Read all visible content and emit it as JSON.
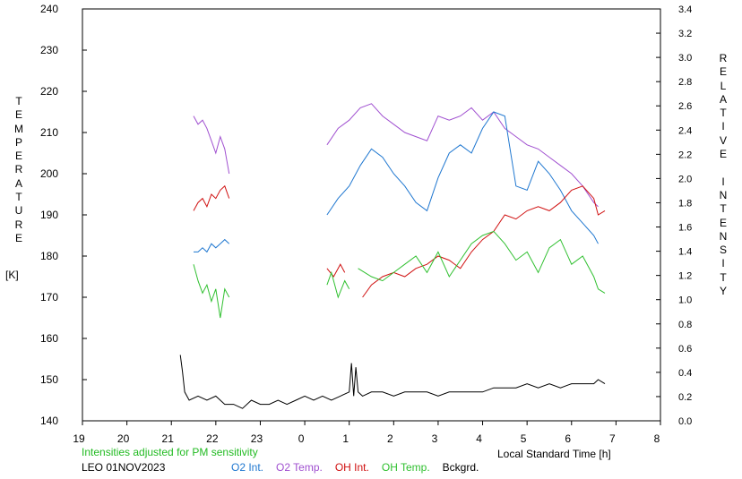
{
  "chart_data": {
    "type": "line",
    "station": "LEO 01NOV2023",
    "note": "Intensities adjusted for PM sensitivity",
    "xlabel": "Local Standard Time [h]",
    "xticks": [
      "19",
      "20",
      "21",
      "22",
      "23",
      "0",
      "1",
      "2",
      "3",
      "4",
      "5",
      "6",
      "7",
      "8"
    ],
    "xlim": [
      19,
      32
    ],
    "ylabel_left": "TEMPERATURE",
    "ylabel_left_unit": "[K]",
    "ylim_left": [
      140,
      240
    ],
    "yticks_left": [
      "140",
      "150",
      "160",
      "170",
      "180",
      "190",
      "200",
      "210",
      "220",
      "230",
      "240"
    ],
    "ylabel_right": "RELATIVE INTENSITY",
    "ylim_right": [
      0,
      3.4
    ],
    "yticks_right": [
      "0.0",
      "0.2",
      "0.4",
      "0.6",
      "0.8",
      "1.0",
      "1.2",
      "1.4",
      "1.6",
      "1.8",
      "2.0",
      "2.2",
      "2.4",
      "2.6",
      "2.8",
      "3.0",
      "3.2",
      "3.4"
    ],
    "legend": [
      {
        "name": "O2 Int.",
        "color": "#1f77d0"
      },
      {
        "name": "O2 Temp.",
        "color": "#a050d0"
      },
      {
        "name": "OH Int.",
        "color": "#d01010"
      },
      {
        "name": "OH Temp.",
        "color": "#30c030"
      },
      {
        "name": "Bckgrd.",
        "color": "#000000"
      }
    ],
    "series": [
      {
        "name": "O2 Temp.",
        "axis": "left",
        "color": "#a050d0",
        "segments": [
          {
            "x": [
              21.5,
              21.6,
              21.7,
              21.8,
              21.9,
              22.0,
              22.1,
              22.2,
              22.3
            ],
            "y": [
              214,
              212,
              213,
              211,
              208,
              205,
              209,
              206,
              200
            ]
          },
          {
            "x": [
              24.5,
              24.75,
              25.0,
              25.25,
              25.5,
              25.75,
              26.0,
              26.25,
              26.5,
              26.75,
              27.0,
              27.25,
              27.5,
              27.75,
              28.0,
              28.25,
              28.5,
              28.75,
              29.0,
              29.25,
              29.5,
              29.75,
              30.0,
              30.25,
              30.5,
              30.6
            ],
            "y": [
              207,
              211,
              213,
              216,
              217,
              214,
              212,
              210,
              209,
              208,
              214,
              213,
              214,
              216,
              213,
              215,
              211,
              209,
              207,
              206,
              204,
              202,
              200,
              197,
              193,
              192
            ]
          }
        ]
      },
      {
        "name": "O2 Int.",
        "axis": "left",
        "color": "#1f77d0",
        "segments": [
          {
            "x": [
              21.5,
              21.6,
              21.7,
              21.8,
              21.9,
              22.0,
              22.1,
              22.2,
              22.3
            ],
            "y": [
              181,
              181,
              182,
              181,
              183,
              182,
              183,
              184,
              183
            ]
          },
          {
            "x": [
              24.5,
              24.75,
              25.0,
              25.25,
              25.5,
              25.75,
              26.0,
              26.25,
              26.5,
              26.75,
              27.0,
              27.25,
              27.5,
              27.75,
              28.0,
              28.25,
              28.5,
              28.75,
              29.0,
              29.25,
              29.5,
              29.75,
              30.0,
              30.25,
              30.5,
              30.6
            ],
            "y": [
              190,
              194,
              197,
              202,
              206,
              204,
              200,
              197,
              193,
              191,
              199,
              205,
              207,
              205,
              211,
              215,
              214,
              197,
              196,
              203,
              200,
              196,
              191,
              188,
              185,
              183
            ]
          }
        ]
      },
      {
        "name": "OH Int.",
        "axis": "left",
        "color": "#d01010",
        "segments": [
          {
            "x": [
              21.5,
              21.6,
              21.7,
              21.8,
              21.9,
              22.0,
              22.1,
              22.2,
              22.3
            ],
            "y": [
              191,
              193,
              194,
              192,
              195,
              194,
              196,
              197,
              194
            ]
          },
          {
            "x": [
              24.5,
              24.65,
              24.8,
              24.9
            ],
            "y": [
              177,
              175,
              178,
              176
            ]
          },
          {
            "x": [
              25.3,
              25.5,
              25.75,
              26.0,
              26.25,
              26.5,
              26.75,
              27.0,
              27.25,
              27.5,
              27.75,
              28.0,
              28.25,
              28.5,
              28.75,
              29.0,
              29.25,
              29.5,
              29.75,
              30.0,
              30.25,
              30.5,
              30.6,
              30.75
            ],
            "y": [
              170,
              173,
              175,
              176,
              175,
              177,
              178,
              180,
              179,
              177,
              181,
              184,
              186,
              190,
              189,
              191,
              192,
              191,
              193,
              196,
              197,
              194,
              190,
              191
            ]
          }
        ]
      },
      {
        "name": "OH Temp.",
        "axis": "left",
        "color": "#30c030",
        "segments": [
          {
            "x": [
              21.5,
              21.6,
              21.7,
              21.8,
              21.9,
              22.0,
              22.1,
              22.2,
              22.3
            ],
            "y": [
              178,
              174,
              171,
              173,
              169,
              172,
              165,
              172,
              170
            ]
          },
          {
            "x": [
              24.5,
              24.6,
              24.75,
              24.9,
              25.0
            ],
            "y": [
              173,
              176,
              170,
              174,
              172
            ]
          },
          {
            "x": [
              25.2,
              25.5,
              25.75,
              26.0,
              26.25,
              26.5,
              26.75,
              27.0,
              27.25,
              27.5,
              27.75,
              28.0,
              28.25,
              28.5,
              28.75,
              29.0,
              29.25,
              29.5,
              29.75,
              30.0,
              30.25,
              30.5,
              30.6,
              30.75
            ],
            "y": [
              177,
              175,
              174,
              176,
              178,
              180,
              176,
              181,
              175,
              179,
              183,
              185,
              186,
              183,
              179,
              181,
              176,
              182,
              184,
              178,
              180,
              175,
              172,
              171
            ]
          }
        ]
      },
      {
        "name": "Bckgrd.",
        "axis": "left",
        "color": "#000000",
        "segments": [
          {
            "x": [
              21.2,
              21.25,
              21.3,
              21.4,
              21.6,
              21.8,
              22.0,
              22.2,
              22.4,
              22.6,
              22.8,
              23.0,
              23.2,
              23.4,
              23.6,
              23.8,
              24.0,
              24.2,
              24.4,
              24.6,
              24.8,
              25.0,
              25.05,
              25.1,
              25.15,
              25.2,
              25.3,
              25.5,
              25.75,
              26.0,
              26.25,
              26.5,
              26.75,
              27.0,
              27.25,
              27.5,
              27.75,
              28.0,
              28.25,
              28.5,
              28.75,
              29.0,
              29.25,
              29.5,
              29.75,
              30.0,
              30.25,
              30.5,
              30.6,
              30.75
            ],
            "y": [
              156,
              152,
              147,
              145,
              146,
              145,
              146,
              144,
              144,
              143,
              145,
              144,
              144,
              145,
              144,
              145,
              146,
              145,
              146,
              145,
              146,
              147,
              154,
              146,
              153,
              147,
              146,
              147,
              147,
              146,
              147,
              147,
              147,
              146,
              147,
              147,
              147,
              147,
              148,
              148,
              148,
              149,
              148,
              149,
              148,
              149,
              149,
              149,
              150,
              149
            ]
          }
        ]
      }
    ]
  }
}
